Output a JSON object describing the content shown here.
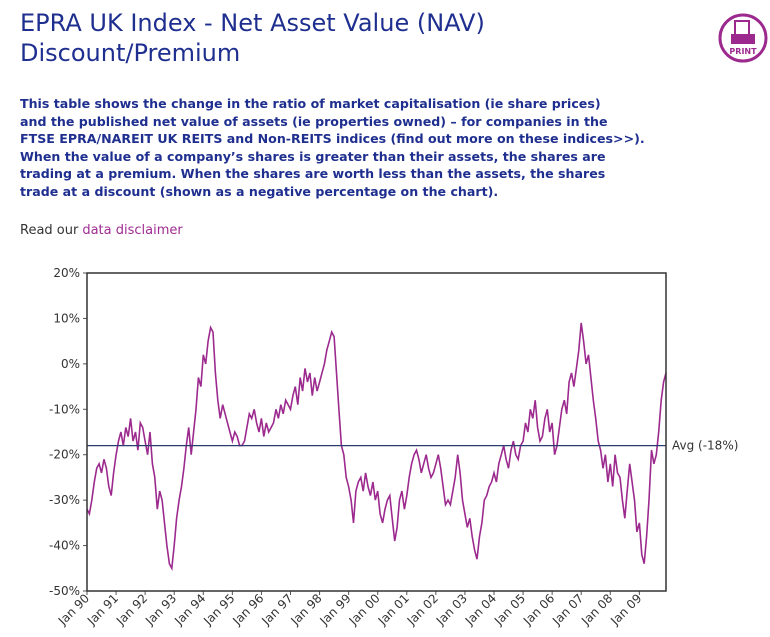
{
  "page": {
    "title": [
      "EPRA UK Index - Net Asset Value (NAV)",
      "Discount/Premium"
    ],
    "description": [
      "This table shows the change in the ratio of market capitalisation (ie share prices)",
      "and the published net value of assets (ie properties owned) – for companies in the",
      "FTSE EPRA/NAREIT UK REITS and Non-REITS indices (find out more on these indices>>).",
      "When the value of a company’s shares is greater than their assets, the shares are",
      "trading at a premium. When the shares are worth less than the assets, the shares",
      "trade at a discount (shown as a negative percentage on the chart)."
    ],
    "disclaimer_prefix": "Read our",
    "disclaimer_link": "data disclaimer",
    "print_label": "PRINT"
  },
  "chart_data": {
    "type": "line",
    "categories": [
      "Jan 90",
      null,
      null,
      null,
      null,
      null,
      null,
      null,
      null,
      null,
      null,
      null,
      "Jan 91",
      null,
      null,
      null,
      null,
      null,
      null,
      null,
      null,
      null,
      null,
      null,
      "Jan 92",
      null,
      null,
      null,
      null,
      null,
      null,
      null,
      null,
      null,
      null,
      null,
      "Jan 93",
      null,
      null,
      null,
      null,
      null,
      null,
      null,
      null,
      null,
      null,
      null,
      "Jan 94",
      null,
      null,
      null,
      null,
      null,
      null,
      null,
      null,
      null,
      null,
      null,
      "Jan 95",
      null,
      null,
      null,
      null,
      null,
      null,
      null,
      null,
      null,
      null,
      null,
      "Jan 96",
      null,
      null,
      null,
      null,
      null,
      null,
      null,
      null,
      null,
      null,
      null,
      "Jan 97",
      null,
      null,
      null,
      null,
      null,
      null,
      null,
      null,
      null,
      null,
      null,
      "Jan 98",
      null,
      null,
      null,
      null,
      null,
      null,
      null,
      null,
      null,
      null,
      null,
      "Jan 99",
      null,
      null,
      null,
      null,
      null,
      null,
      null,
      null,
      null,
      null,
      null,
      "Jan 00",
      null,
      null,
      null,
      null,
      null,
      null,
      null,
      null,
      null,
      null,
      null,
      "Jan 01",
      null,
      null,
      null,
      null,
      null,
      null,
      null,
      null,
      null,
      null,
      null,
      "Jan 02",
      null,
      null,
      null,
      null,
      null,
      null,
      null,
      null,
      null,
      null,
      null,
      "Jan 03",
      null,
      null,
      null,
      null,
      null,
      null,
      null,
      null,
      null,
      null,
      null,
      "Jan 04",
      null,
      null,
      null,
      null,
      null,
      null,
      null,
      null,
      null,
      null,
      null,
      "Jan 05",
      null,
      null,
      null,
      null,
      null,
      null,
      null,
      null,
      null,
      null,
      null,
      "Jan 06",
      null,
      null,
      null,
      null,
      null,
      null,
      null,
      null,
      null,
      null,
      null,
      "Jan 07",
      null,
      null,
      null,
      null,
      null,
      null,
      null,
      null,
      null,
      null,
      null,
      "Jan 08",
      null,
      null,
      null,
      null,
      null,
      null,
      null,
      null,
      null,
      null,
      null,
      "Jan 09",
      null,
      null,
      null,
      null,
      null,
      null,
      null,
      null,
      null,
      null,
      null
    ],
    "series": [
      {
        "color": "#9c2a8e",
        "values": [
          -32,
          -33,
          -30,
          -26,
          -23,
          -22,
          -24,
          -21,
          -23,
          -27,
          -29,
          -24,
          -20,
          -17,
          -15,
          -18,
          -14,
          -16,
          -12,
          -17,
          -15,
          -19,
          -13,
          -14,
          -17,
          -20,
          -15,
          -22,
          -25,
          -32,
          -28,
          -30,
          -35,
          -40,
          -44,
          -45,
          -40,
          -34,
          -30,
          -27,
          -23,
          -18,
          -14,
          -20,
          -15,
          -10,
          -3,
          -5,
          2,
          0,
          5,
          8,
          7,
          -2,
          -8,
          -12,
          -9,
          -11,
          -13,
          -15,
          -17,
          -15,
          -16,
          -18,
          -18,
          -17,
          -14,
          -11,
          -12,
          -10,
          -13,
          -15,
          -12,
          -16,
          -13,
          -15,
          -14,
          -13,
          -10,
          -12,
          -9,
          -11,
          -8,
          -9,
          -10,
          -7,
          -5,
          -9,
          -3,
          -6,
          -1,
          -4,
          -2,
          -7,
          -3,
          -6,
          -4,
          -2,
          0,
          3,
          5,
          7,
          6,
          -2,
          -10,
          -18,
          -20,
          -25,
          -27,
          -30,
          -35,
          -28,
          -26,
          -25,
          -28,
          -24,
          -27,
          -29,
          -26,
          -30,
          -28,
          -33,
          -35,
          -32,
          -30,
          -29,
          -34,
          -39,
          -36,
          -30,
          -28,
          -32,
          -29,
          -25,
          -22,
          -20,
          -19,
          -21,
          -24,
          -22,
          -20,
          -23,
          -25,
          -24,
          -22,
          -20,
          -23,
          -27,
          -31,
          -30,
          -31,
          -28,
          -25,
          -20,
          -24,
          -30,
          -33,
          -36,
          -34,
          -38,
          -41,
          -43,
          -38,
          -35,
          -30,
          -29,
          -27,
          -26,
          -24,
          -26,
          -22,
          -20,
          -18,
          -21,
          -23,
          -19,
          -17,
          -20,
          -21,
          -18,
          -17,
          -13,
          -15,
          -10,
          -12,
          -8,
          -14,
          -17,
          -16,
          -12,
          -10,
          -15,
          -13,
          -20,
          -18,
          -14,
          -10,
          -8,
          -11,
          -4,
          -2,
          -5,
          -1,
          3,
          9,
          5,
          0,
          2,
          -3,
          -8,
          -12,
          -17,
          -19,
          -23,
          -20,
          -26,
          -22,
          -27,
          -20,
          -24,
          -25,
          -30,
          -34,
          -28,
          -22,
          -26,
          -30,
          -37,
          -35,
          -42,
          -44,
          -38,
          -30,
          -19,
          -22,
          -20,
          -15,
          -8,
          -4,
          -2
        ]
      }
    ],
    "ylim": [
      -50,
      20
    ],
    "yticks": [
      {
        "value": -50,
        "label": "-50%"
      },
      {
        "value": -40,
        "label": "-40%"
      },
      {
        "value": -30,
        "label": "-30%"
      },
      {
        "value": -20,
        "label": "-20%"
      },
      {
        "value": -10,
        "label": "-10%"
      },
      {
        "value": 0,
        "label": "0%"
      },
      {
        "value": 10,
        "label": "10%"
      },
      {
        "value": 20,
        "label": "20%"
      }
    ],
    "average": {
      "value": -18,
      "label": "Avg (-18%)",
      "color": "#2a3d6e"
    },
    "grid": false
  }
}
